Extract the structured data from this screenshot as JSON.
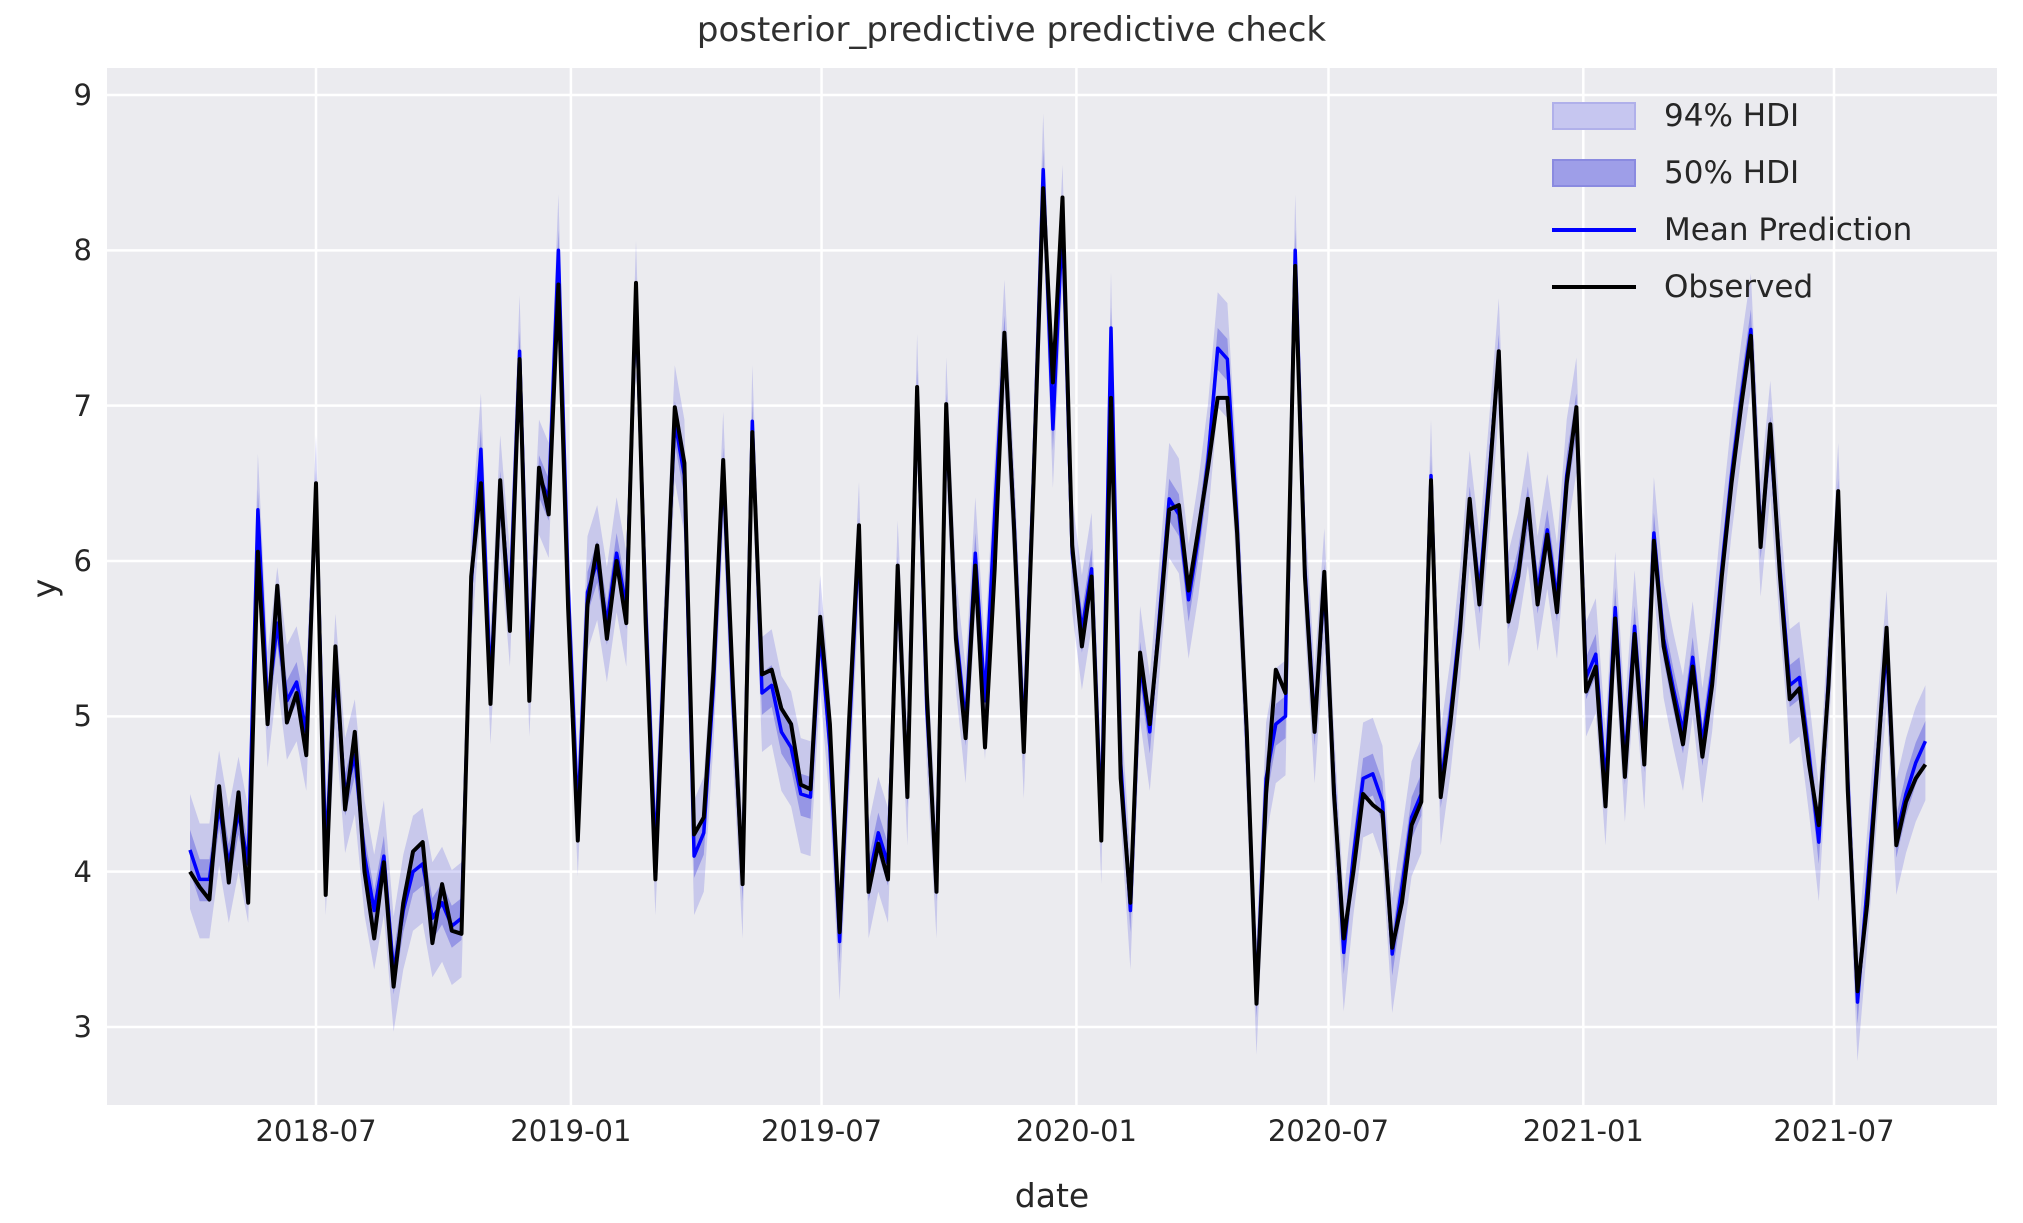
{
  "chart_data": {
    "type": "line",
    "title": "posterior_predictive predictive check",
    "xlabel": "date",
    "ylabel": "y",
    "grid": true,
    "legend_position": "upper right",
    "x_axis": {
      "kind": "date",
      "visible_range": [
        "2018-01-31",
        "2021-10-27"
      ],
      "tick_dates": [
        "2018-07-01",
        "2019-01-01",
        "2019-07-01",
        "2020-01-01",
        "2020-07-01",
        "2021-01-01",
        "2021-07-01"
      ],
      "tick_labels": [
        "2018-07",
        "2019-01",
        "2019-07",
        "2020-01",
        "2020-07",
        "2021-01",
        "2021-07"
      ]
    },
    "y_axis": {
      "ticks": [
        3,
        4,
        5,
        6,
        7,
        8,
        9
      ],
      "visible_range": [
        2.5,
        9.17
      ]
    },
    "colors": {
      "plot_bg": "#ebebef",
      "gridline": "#ffffff",
      "mean_line": "#0000ff",
      "observed_line": "#000000",
      "hdi94_fill": "rgba(62,62,220,0.20)",
      "hdi50_fill": "rgba(62,62,220,0.36)",
      "legend_hdi94_swatch": "#c6c6f0",
      "legend_hdi50_swatch": "#9e9ee8",
      "text": "#262626"
    },
    "legend": [
      {
        "label": "94% HDI",
        "type": "patch-light"
      },
      {
        "label": "50% HDI",
        "type": "patch-dark"
      },
      {
        "label": "Mean Prediction",
        "type": "line-blue"
      },
      {
        "label": "Observed",
        "type": "line-black"
      }
    ],
    "series": {
      "start_date": "2018-04-01",
      "freq_days": 7,
      "n_points": 180,
      "hdi94_lower_offset": 0.38,
      "hdi94_upper_offset": 0.36,
      "hdi50_lower_offset": 0.14,
      "hdi50_upper_offset": 0.13,
      "observed": [
        4.0,
        3.9,
        3.82,
        4.55,
        3.93,
        4.51,
        3.8,
        6.06,
        4.95,
        5.84,
        4.96,
        5.15,
        4.75,
        6.5,
        3.85,
        5.45,
        4.4,
        4.9,
        4.0,
        3.57,
        4.06,
        3.26,
        3.8,
        4.13,
        4.19,
        3.54,
        3.92,
        3.62,
        3.6,
        5.9,
        6.5,
        5.08,
        6.52,
        5.55,
        7.3,
        5.1,
        6.6,
        6.3,
        7.78,
        5.7,
        4.2,
        5.72,
        6.1,
        5.5,
        6.0,
        5.6,
        7.79,
        5.6,
        3.95,
        5.5,
        6.99,
        6.63,
        4.24,
        4.35,
        5.3,
        6.65,
        5.2,
        3.92,
        6.83,
        5.27,
        5.3,
        5.05,
        4.95,
        4.56,
        4.53,
        5.64,
        4.95,
        3.61,
        5.0,
        6.23,
        3.87,
        4.18,
        3.95,
        5.97,
        4.48,
        7.12,
        5.15,
        3.87,
        7.01,
        5.5,
        4.86,
        5.97,
        4.8,
        5.95,
        7.47,
        6.2,
        4.77,
        6.5,
        8.4,
        7.15,
        8.34,
        6.1,
        5.45,
        5.9,
        4.2,
        7.05,
        4.6,
        3.8,
        5.41,
        4.95,
        5.6,
        6.33,
        6.36,
        5.81,
        6.2,
        6.6,
        7.05,
        7.05,
        6.18,
        4.9,
        3.15,
        4.5,
        5.3,
        5.15,
        7.9,
        5.9,
        4.9,
        5.93,
        4.5,
        3.57,
        4.0,
        4.5,
        4.43,
        4.38,
        3.51,
        3.8,
        4.3,
        4.45,
        6.52,
        4.48,
        4.95,
        5.55,
        6.4,
        5.72,
        6.5,
        7.35,
        5.61,
        5.9,
        6.4,
        5.72,
        6.17,
        5.67,
        6.5,
        6.99,
        5.16,
        5.32,
        4.42,
        5.63,
        4.61,
        5.53,
        4.69,
        6.13,
        5.45,
        5.13,
        4.82,
        5.32,
        4.74,
        5.2,
        5.9,
        6.5,
        7.0,
        7.45,
        6.09,
        6.88,
        5.9,
        5.11,
        5.18,
        4.69,
        4.3,
        5.2,
        6.45,
        4.52,
        3.23,
        3.79,
        4.65,
        5.57,
        4.17,
        4.45,
        4.6,
        4.69
      ],
      "mean": [
        4.14,
        3.95,
        3.95,
        4.42,
        4.05,
        4.38,
        4.05,
        6.33,
        5.05,
        5.6,
        5.1,
        5.22,
        4.9,
        6.45,
        4.1,
        5.3,
        4.5,
        4.75,
        4.1,
        3.75,
        4.1,
        3.35,
        3.75,
        4.0,
        4.05,
        3.7,
        3.8,
        3.65,
        3.7,
        5.85,
        6.72,
        5.2,
        6.45,
        5.7,
        7.35,
        5.25,
        6.55,
        6.4,
        8.0,
        5.85,
        4.35,
        5.8,
        6.0,
        5.6,
        6.05,
        5.7,
        7.7,
        5.7,
        4.1,
        5.55,
        6.9,
        6.55,
        4.1,
        4.25,
        5.2,
        6.6,
        5.1,
        3.95,
        6.9,
        5.15,
        5.2,
        4.9,
        4.8,
        4.5,
        4.48,
        5.55,
        4.8,
        3.55,
        4.9,
        6.15,
        3.95,
        4.25,
        4.05,
        5.9,
        4.55,
        7.1,
        5.05,
        3.95,
        6.95,
        5.55,
        4.95,
        6.05,
        5.1,
        6.3,
        7.45,
        6.25,
        4.85,
        6.55,
        8.52,
        6.85,
        8.19,
        6.05,
        5.55,
        5.95,
        4.3,
        7.5,
        4.7,
        3.75,
        5.35,
        4.9,
        5.65,
        6.4,
        6.3,
        5.75,
        6.15,
        6.65,
        7.37,
        7.3,
        6.25,
        4.85,
        3.2,
        4.6,
        4.95,
        5.0,
        8.0,
        5.95,
        4.95,
        5.85,
        4.55,
        3.48,
        4.1,
        4.6,
        4.63,
        4.45,
        3.47,
        3.9,
        4.35,
        4.5,
        6.55,
        4.55,
        5.0,
        5.6,
        6.35,
        5.8,
        6.55,
        7.33,
        5.7,
        5.95,
        6.35,
        5.8,
        6.2,
        5.75,
        6.55,
        6.95,
        5.25,
        5.4,
        4.55,
        5.7,
        4.7,
        5.58,
        4.78,
        6.18,
        5.5,
        5.18,
        4.9,
        5.38,
        4.82,
        5.28,
        5.95,
        6.55,
        7.05,
        7.49,
        6.15,
        6.8,
        5.95,
        5.2,
        5.25,
        4.75,
        4.19,
        5.25,
        6.4,
        4.6,
        3.16,
        3.9,
        4.7,
        5.45,
        4.23,
        4.5,
        4.7,
        4.84
      ]
    }
  }
}
